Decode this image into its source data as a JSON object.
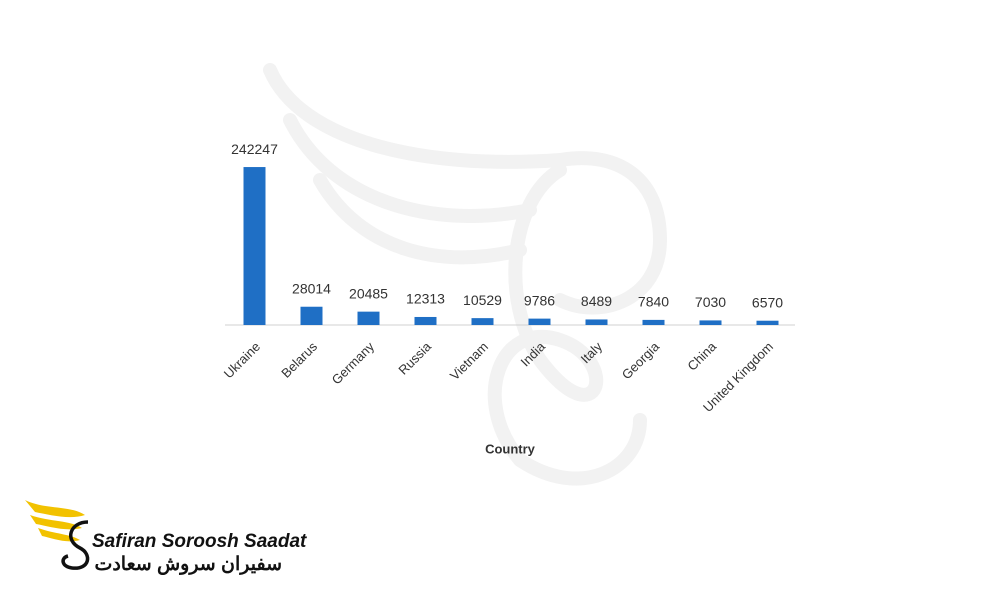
{
  "chart_data": {
    "type": "bar",
    "x_label": "Country",
    "categories": [
      "Ukraine",
      "Belarus",
      "Germany",
      "Russia",
      "Vietnam",
      "India",
      "Italy",
      "Georgia",
      "China",
      "United Kingdom"
    ],
    "values": [
      242247,
      28014,
      20485,
      12313,
      10529,
      9786,
      8489,
      7840,
      7030,
      6570
    ],
    "color": "#1f6fc5",
    "ylim": [
      0,
      250000
    ],
    "grid": false,
    "data_labels": true
  },
  "logo": {
    "name": "Safiran Soroosh Saadat",
    "name_fa": "سفیران سروش سعادت"
  }
}
